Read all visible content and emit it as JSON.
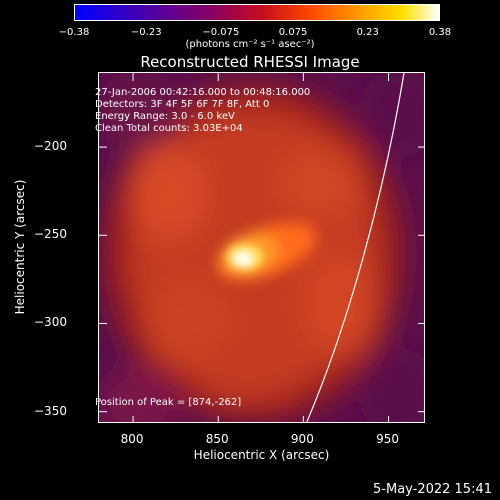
{
  "colorbar": {
    "ticks": [
      "-0.38",
      "-0.23",
      "-0.075",
      "0.075",
      "0.23",
      "0.38"
    ],
    "units": "(photons cm⁻² s⁻¹ asec⁻²)"
  },
  "chart_data": {
    "type": "heatmap",
    "title": "Reconstructed RHESSI Image",
    "xlabel": "Heliocentric X (arcsec)",
    "ylabel": "Heliocentric Y (arcsec)",
    "xlim": [
      780,
      972
    ],
    "ylim": [
      -357,
      -158
    ],
    "xticks": [
      "800",
      "850",
      "900",
      "950"
    ],
    "yticks": [
      "-200",
      "-250",
      "-300",
      "-350"
    ],
    "clim": [
      -0.38,
      0.38
    ],
    "peak": [
      874,
      -262
    ],
    "info_lines": [
      "27-Jan-2006 00:42:16.000 to 00:48:16.000",
      "Detectors: 3F 4F 5F 6F 7F 8F, Att 0",
      "Energy Range: 3.0 - 6.0 keV",
      "Clean     Total counts: 3.03E+04"
    ],
    "peak_label": "Position of Peak = [874,-262]"
  },
  "footer": {
    "timestamp": "5-May-2022 15:41"
  }
}
